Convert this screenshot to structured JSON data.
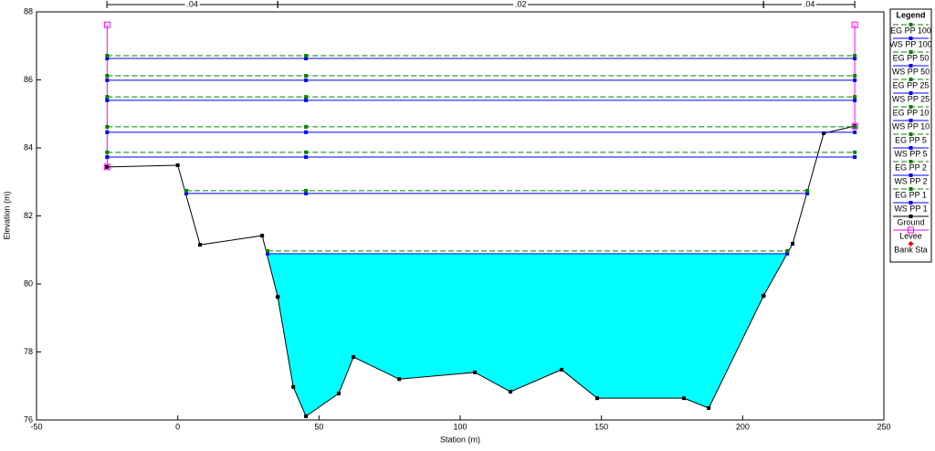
{
  "chart_data": {
    "type": "cross-section",
    "xlabel": "Station (m)",
    "ylabel": "Elevation (m)",
    "xlim": [
      -50,
      250
    ],
    "xticks": [
      -50,
      0,
      50,
      100,
      150,
      200,
      250
    ],
    "ylim": [
      76,
      88
    ],
    "yticks": [
      76,
      78,
      80,
      82,
      84,
      86,
      88
    ],
    "legend_title": "Legend",
    "legend": "right",
    "roughness": [
      ".04",
      ".02",
      ".04"
    ],
    "series": [
      {
        "name": "EG PP 100",
        "color": "#008000",
        "dash": true,
        "marker": "square",
        "x": [
          -25,
          45.4,
          239.7
        ],
        "values": [
          86.71,
          86.71,
          86.71
        ]
      },
      {
        "name": "WS PP 100",
        "color": "#0000ff",
        "dash": false,
        "marker": "square",
        "x": [
          -25,
          45.4,
          239.7
        ],
        "values": [
          86.63,
          86.63,
          86.63
        ]
      },
      {
        "name": "EG PP 50",
        "color": "#008000",
        "dash": true,
        "marker": "square",
        "x": [
          -25,
          45.4,
          239.7
        ],
        "values": [
          86.12,
          86.12,
          86.12
        ]
      },
      {
        "name": "WS PP 50",
        "color": "#0000ff",
        "dash": false,
        "marker": "square",
        "x": [
          -25,
          45.4,
          239.7
        ],
        "values": [
          85.99,
          85.99,
          85.99
        ]
      },
      {
        "name": "EG PP 25",
        "color": "#008000",
        "dash": true,
        "marker": "square",
        "x": [
          -25,
          45.4,
          239.7
        ],
        "values": [
          85.5,
          85.5,
          85.5
        ]
      },
      {
        "name": "WS PP 25",
        "color": "#0000ff",
        "dash": false,
        "marker": "square",
        "x": [
          -25,
          45.4,
          239.7
        ],
        "values": [
          85.4,
          85.4,
          85.4
        ]
      },
      {
        "name": "EG PP 10",
        "color": "#008000",
        "dash": true,
        "marker": "square",
        "x": [
          -25,
          45.4,
          239.7
        ],
        "values": [
          84.62,
          84.62,
          84.62
        ]
      },
      {
        "name": "WS PP 10",
        "color": "#0000ff",
        "dash": false,
        "marker": "square",
        "x": [
          -25,
          45.4,
          239.7
        ],
        "values": [
          84.46,
          84.46,
          84.46
        ]
      },
      {
        "name": "EG PP 5",
        "color": "#008000",
        "dash": true,
        "marker": "square",
        "x": [
          -25,
          45.4,
          239.7
        ],
        "values": [
          83.87,
          83.87,
          83.87
        ]
      },
      {
        "name": "WS PP 5",
        "color": "#0000ff",
        "dash": false,
        "marker": "square",
        "x": [
          -25,
          45.4,
          239.7
        ],
        "values": [
          83.73,
          83.73,
          83.73
        ]
      },
      {
        "name": "EG PP 2",
        "color": "#008000",
        "dash": true,
        "marker": "square",
        "x": [
          3.0,
          45.4,
          222.9
        ],
        "values": [
          82.74,
          82.74,
          82.74
        ]
      },
      {
        "name": "WS PP 2",
        "color": "#0000ff",
        "dash": false,
        "marker": "square",
        "x": [
          3.0,
          45.4,
          222.9
        ],
        "values": [
          82.66,
          82.66,
          82.66
        ]
      },
      {
        "name": "EG PP 1",
        "color": "#008000",
        "dash": true,
        "marker": "square",
        "x": [
          31.8,
          215.8
        ],
        "values": [
          80.97,
          80.97
        ]
      },
      {
        "name": "WS PP 1",
        "color": "#0000ff",
        "dash": false,
        "marker": "square",
        "fill": "#00ffff",
        "x": [
          31.8,
          215.8
        ],
        "values": [
          80.89,
          80.89
        ]
      },
      {
        "name": "Ground",
        "color": "#000000",
        "dash": false,
        "marker": "square",
        "terrain": true,
        "x": [
          -25.1,
          0,
          7.9,
          29.9,
          35.4,
          40.9,
          45.4,
          57.0,
          62.2,
          78.4,
          105.2,
          117.8,
          135.9,
          148.5,
          179.2,
          188.0,
          207.4,
          217.7,
          228.7,
          239.7
        ],
        "values": [
          83.44,
          83.49,
          81.15,
          81.42,
          79.62,
          76.97,
          76.11,
          76.78,
          77.85,
          77.2,
          77.4,
          76.83,
          77.48,
          76.64,
          76.64,
          76.35,
          79.65,
          81.18,
          84.43,
          84.64
        ]
      },
      {
        "name": "Levee",
        "color": "#ff00ff",
        "dash": false,
        "marker": "open-square",
        "x": [
          -25,
          -25,
          null,
          239.7,
          239.7
        ],
        "values": [
          87.62,
          83.44,
          null,
          87.62,
          84.64
        ]
      },
      {
        "name": "Bank Sta",
        "color": "#ff0000",
        "dash": false,
        "marker": "diamond",
        "noline": true,
        "x": [
          35.4,
          207.4
        ],
        "values": [
          79.62,
          79.65
        ]
      }
    ]
  }
}
